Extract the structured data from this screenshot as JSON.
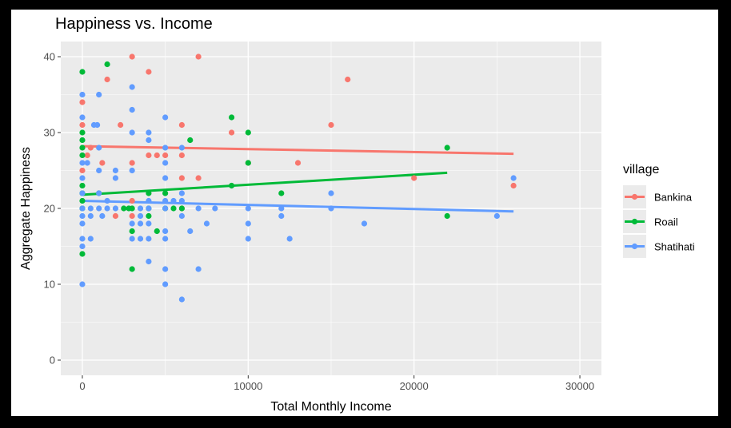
{
  "chart_data": {
    "type": "scatter",
    "title": "Happiness vs. Income",
    "xlabel": "Total Monthly Income",
    "ylabel": "Aggregate Happiness",
    "xlim": [
      -1300,
      31300
    ],
    "ylim": [
      -2,
      42
    ],
    "xticks": [
      0,
      10000,
      20000,
      30000
    ],
    "xtick_labels": [
      "0",
      "10000",
      "20000",
      "30000"
    ],
    "yticks": [
      0,
      10,
      20,
      30,
      40
    ],
    "ytick_labels": [
      "0",
      "10",
      "20",
      "30",
      "40"
    ],
    "grid": true,
    "panel_background": "#EBEBEB",
    "legend": {
      "title": "village",
      "position": "right"
    },
    "series": [
      {
        "name": "Bankina",
        "color": "#F8766D",
        "points": [
          [
            0,
            34
          ],
          [
            0,
            31
          ],
          [
            0,
            25
          ],
          [
            300,
            27
          ],
          [
            500,
            28
          ],
          [
            1500,
            37
          ],
          [
            2300,
            31
          ],
          [
            3000,
            40
          ],
          [
            3000,
            26
          ],
          [
            3000,
            21
          ],
          [
            3000,
            19
          ],
          [
            4000,
            38
          ],
          [
            4000,
            27
          ],
          [
            4500,
            27
          ],
          [
            5000,
            27
          ],
          [
            6000,
            31
          ],
          [
            6000,
            27
          ],
          [
            6000,
            24
          ],
          [
            6000,
            20
          ],
          [
            7000,
            40
          ],
          [
            7000,
            24
          ],
          [
            9000,
            30
          ],
          [
            10000,
            26
          ],
          [
            13000,
            26
          ],
          [
            15000,
            31
          ],
          [
            16000,
            37
          ],
          [
            20000,
            24
          ],
          [
            26000,
            23
          ],
          [
            2000,
            19
          ],
          [
            1200,
            26
          ]
        ],
        "trend": [
          [
            0,
            28.2
          ],
          [
            26000,
            27.2
          ]
        ]
      },
      {
        "name": "Roail",
        "color": "#00BA38",
        "points": [
          [
            0,
            38
          ],
          [
            0,
            30
          ],
          [
            0,
            29
          ],
          [
            0,
            28
          ],
          [
            0,
            27
          ],
          [
            0,
            23
          ],
          [
            0,
            22
          ],
          [
            0,
            21
          ],
          [
            0,
            14
          ],
          [
            0,
            20
          ],
          [
            1000,
            22
          ],
          [
            1500,
            39
          ],
          [
            2500,
            20
          ],
          [
            3000,
            20
          ],
          [
            3000,
            17
          ],
          [
            3000,
            12
          ],
          [
            4000,
            22
          ],
          [
            4000,
            20
          ],
          [
            4000,
            19
          ],
          [
            4500,
            17
          ],
          [
            5000,
            22
          ],
          [
            5000,
            20
          ],
          [
            5500,
            20
          ],
          [
            6000,
            20
          ],
          [
            6500,
            29
          ],
          [
            9000,
            32
          ],
          [
            9000,
            23
          ],
          [
            10000,
            30
          ],
          [
            10000,
            26
          ],
          [
            12000,
            22
          ],
          [
            22000,
            28
          ],
          [
            22000,
            19
          ],
          [
            2800,
            20
          ]
        ],
        "trend": [
          [
            0,
            21.8
          ],
          [
            22000,
            24.7
          ]
        ]
      },
      {
        "name": "Shatihati",
        "color": "#619CFF",
        "points": [
          [
            0,
            35
          ],
          [
            0,
            32
          ],
          [
            0,
            26
          ],
          [
            0,
            24
          ],
          [
            0,
            22
          ],
          [
            0,
            20
          ],
          [
            0,
            19
          ],
          [
            0,
            18
          ],
          [
            0,
            16
          ],
          [
            0,
            15
          ],
          [
            0,
            10
          ],
          [
            300,
            26
          ],
          [
            500,
            20
          ],
          [
            500,
            19
          ],
          [
            500,
            16
          ],
          [
            700,
            31
          ],
          [
            900,
            31
          ],
          [
            1000,
            35
          ],
          [
            1000,
            28
          ],
          [
            1000,
            25
          ],
          [
            1000,
            22
          ],
          [
            1000,
            20
          ],
          [
            1200,
            19
          ],
          [
            1500,
            21
          ],
          [
            1500,
            20
          ],
          [
            2000,
            25
          ],
          [
            2000,
            24
          ],
          [
            2000,
            20
          ],
          [
            3000,
            36
          ],
          [
            3000,
            33
          ],
          [
            3000,
            30
          ],
          [
            3000,
            25
          ],
          [
            3000,
            18
          ],
          [
            3000,
            16
          ],
          [
            3500,
            20
          ],
          [
            3500,
            19
          ],
          [
            3500,
            18
          ],
          [
            3500,
            16
          ],
          [
            4000,
            30
          ],
          [
            4000,
            29
          ],
          [
            4000,
            21
          ],
          [
            4000,
            20
          ],
          [
            4000,
            18
          ],
          [
            4000,
            16
          ],
          [
            4000,
            13
          ],
          [
            5000,
            32
          ],
          [
            5000,
            28
          ],
          [
            5000,
            26
          ],
          [
            5000,
            24
          ],
          [
            5000,
            21
          ],
          [
            5000,
            20
          ],
          [
            5000,
            17
          ],
          [
            5000,
            16
          ],
          [
            5000,
            12
          ],
          [
            5000,
            10
          ],
          [
            5500,
            21
          ],
          [
            6000,
            28
          ],
          [
            6000,
            22
          ],
          [
            6000,
            21
          ],
          [
            6000,
            19
          ],
          [
            6000,
            8
          ],
          [
            6500,
            17
          ],
          [
            7000,
            20
          ],
          [
            7000,
            12
          ],
          [
            7500,
            18
          ],
          [
            8000,
            20
          ],
          [
            10000,
            20
          ],
          [
            10000,
            18
          ],
          [
            10000,
            16
          ],
          [
            12000,
            20
          ],
          [
            12000,
            19
          ],
          [
            12500,
            16
          ],
          [
            15000,
            22
          ],
          [
            15000,
            20
          ],
          [
            17000,
            18
          ],
          [
            25000,
            19
          ],
          [
            26000,
            24
          ]
        ],
        "trend": [
          [
            0,
            21.0
          ],
          [
            26000,
            19.6
          ]
        ]
      }
    ]
  }
}
